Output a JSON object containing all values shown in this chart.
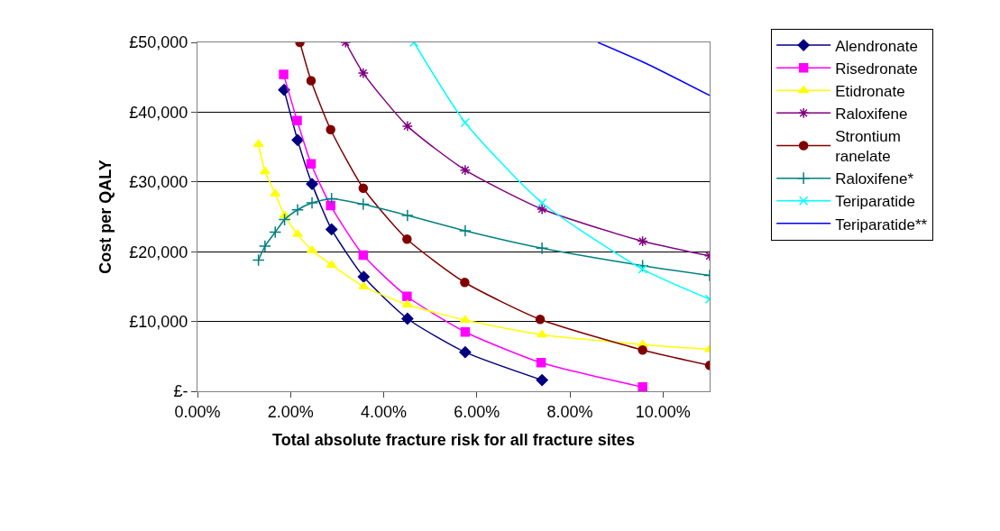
{
  "chart_data": {
    "type": "line",
    "xlabel": "Total absolute fracture risk for all fracture sites",
    "ylabel": "Cost per QALY",
    "xlim": [
      0,
      11
    ],
    "xticks": [
      {
        "value": 0,
        "label": "0.00%"
      },
      {
        "value": 2,
        "label": "2.00%"
      },
      {
        "value": 4,
        "label": "4.00%"
      },
      {
        "value": 6,
        "label": "6.00%"
      },
      {
        "value": 8,
        "label": "8.00%"
      },
      {
        "value": 10,
        "label": "10.00%"
      }
    ],
    "ylim": [
      0,
      50000
    ],
    "yticks": [
      {
        "value": 0,
        "label": "£-"
      },
      {
        "value": 10000,
        "label": "£10,000"
      },
      {
        "value": 20000,
        "label": "£20,000"
      },
      {
        "value": 30000,
        "label": "£30,000"
      },
      {
        "value": 40000,
        "label": "£40,000"
      },
      {
        "value": 50000,
        "label": "£50,000"
      }
    ],
    "grid": "y",
    "legend": "right",
    "line_style": "solid",
    "series": [
      {
        "name": "Alendronate",
        "color": "#000080",
        "marker": "diamond",
        "x": [
          1.86,
          2.15,
          2.46,
          2.88,
          3.57,
          4.51,
          5.75,
          7.4
        ],
        "values": [
          43200,
          36000,
          29700,
          23200,
          16400,
          10400,
          5600,
          1600
        ]
      },
      {
        "name": "Risedronate",
        "color": "#ff00ff",
        "marker": "square",
        "x": [
          1.85,
          2.14,
          2.44,
          2.86,
          3.56,
          4.5,
          5.75,
          7.38,
          9.56
        ],
        "values": [
          45400,
          38800,
          32600,
          26600,
          19500,
          13600,
          8500,
          4100,
          600
        ]
      },
      {
        "name": "Etidronate",
        "color": "#ffff00",
        "marker": "triangle",
        "x": [
          1.31,
          1.45,
          1.67,
          1.87,
          2.15,
          2.46,
          2.88,
          3.57,
          4.51,
          5.75,
          7.4,
          9.56,
          11
        ],
        "values": [
          35400,
          31500,
          28300,
          25200,
          22500,
          20200,
          18100,
          15000,
          12400,
          10200,
          8100,
          6700,
          6000
        ]
      },
      {
        "name": "Raloxifene",
        "color": "#800080",
        "marker": "cross",
        "x": [
          3.18,
          3.56,
          4.51,
          5.75,
          7.4,
          9.56,
          11
        ],
        "values": [
          50000,
          45600,
          38000,
          31700,
          26100,
          21500,
          19400
        ]
      },
      {
        "name": "Strontium ranelate",
        "color": "#800000",
        "marker": "circle",
        "x": [
          2.2,
          2.44,
          2.86,
          3.56,
          4.5,
          5.74,
          7.36,
          9.56,
          11
        ],
        "values": [
          50000,
          44500,
          37500,
          29100,
          21800,
          15600,
          10300,
          5900,
          3700
        ]
      },
      {
        "name": "Raloxifene*",
        "color": "#008080",
        "marker": "plus",
        "x": [
          1.31,
          1.45,
          1.67,
          1.87,
          2.15,
          2.46,
          2.88,
          3.56,
          4.51,
          5.75,
          7.4,
          9.56,
          11
        ],
        "values": [
          18800,
          20800,
          22800,
          24600,
          26000,
          27000,
          27600,
          26800,
          25200,
          23000,
          20500,
          18000,
          16600
        ]
      },
      {
        "name": "Teriparatide",
        "color": "#00ffff",
        "marker": "x",
        "x": [
          4.65,
          5.75,
          7.4,
          9.56,
          11
        ],
        "values": [
          50000,
          38500,
          27000,
          17500,
          13200
        ]
      },
      {
        "name": "Teriparatide**",
        "color": "#0000ff",
        "marker": "none",
        "x": [
          8.6,
          9.63,
          11
        ],
        "values": [
          50000,
          47000,
          42400
        ]
      }
    ]
  }
}
